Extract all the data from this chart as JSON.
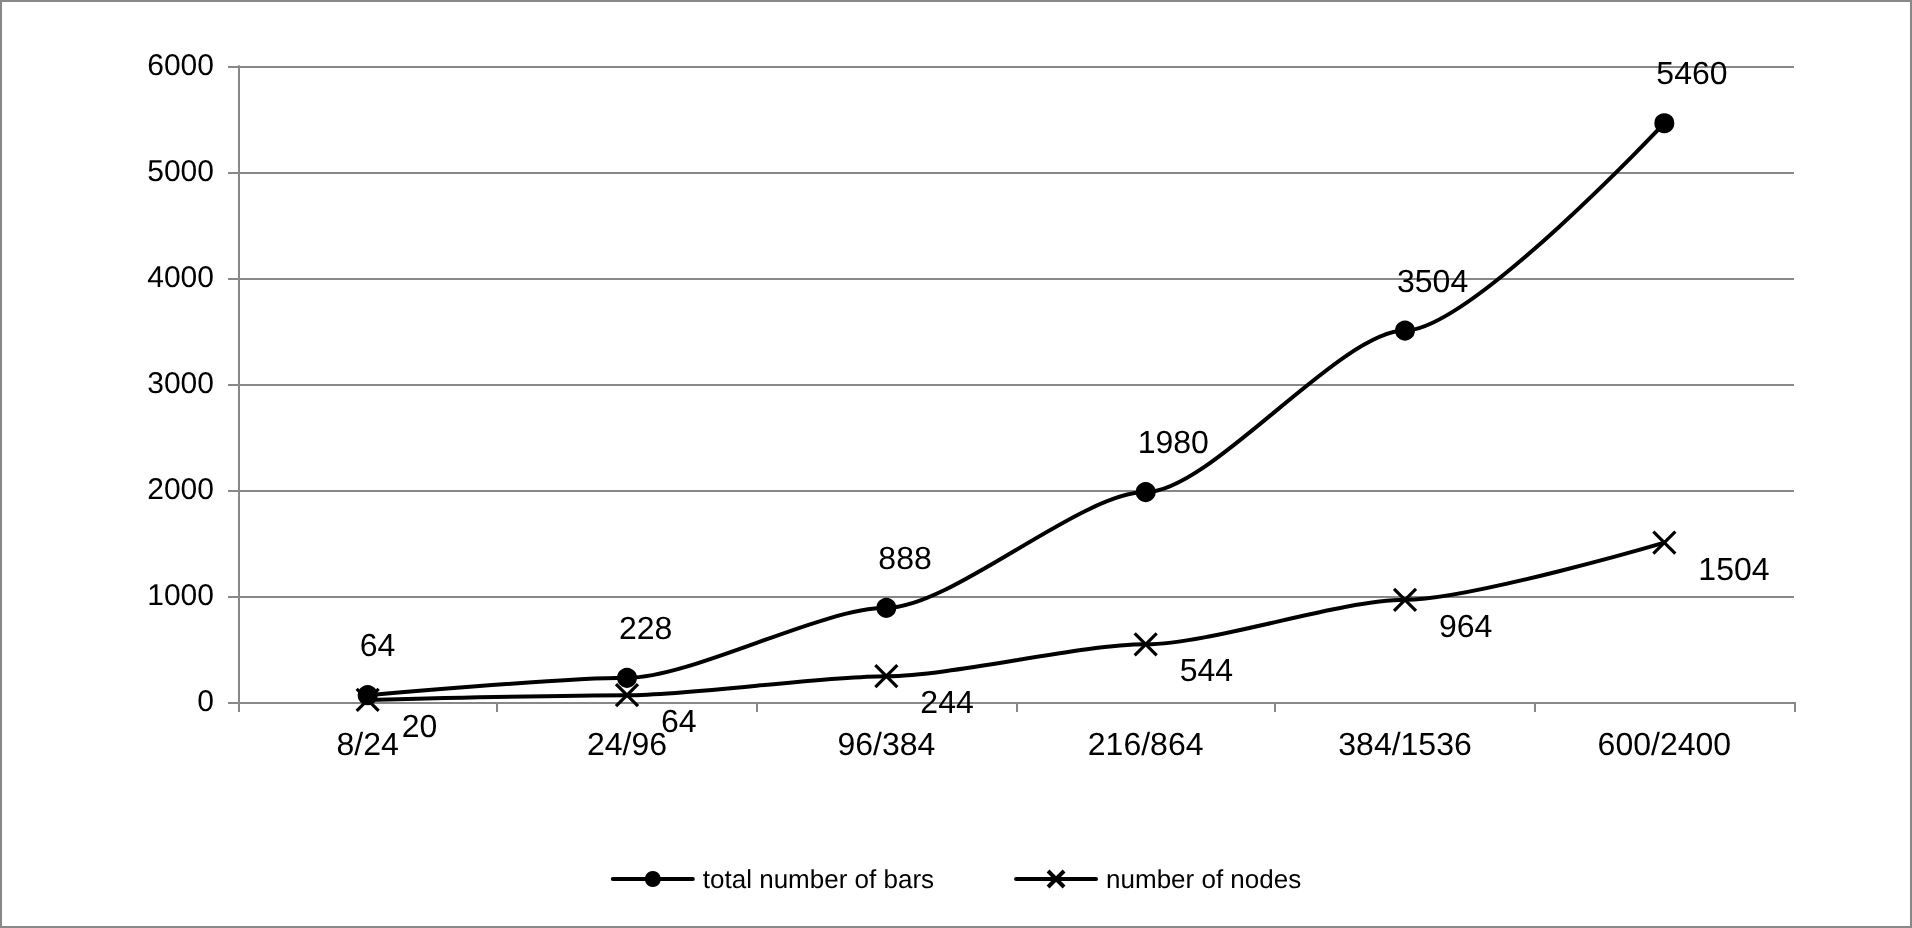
{
  "chart_data": {
    "type": "line",
    "categories": [
      "8/24",
      "24/96",
      "96/384",
      "216/864",
      "384/1536",
      "600/2400"
    ],
    "series": [
      {
        "name": "total number of bars",
        "color": "#000000",
        "marker": "circle",
        "values": [
          64,
          228,
          888,
          1980,
          3504,
          5460
        ]
      },
      {
        "name": "number of nodes",
        "color": "#000000",
        "marker": "cross",
        "values": [
          20,
          64,
          244,
          544,
          964,
          1504
        ]
      }
    ],
    "ylim": [
      0,
      6000
    ],
    "yticks": [
      0,
      1000,
      2000,
      3000,
      4000,
      5000,
      6000
    ],
    "grid": "y",
    "legend": "bottom",
    "data_labels": true,
    "line_style": "solid"
  }
}
